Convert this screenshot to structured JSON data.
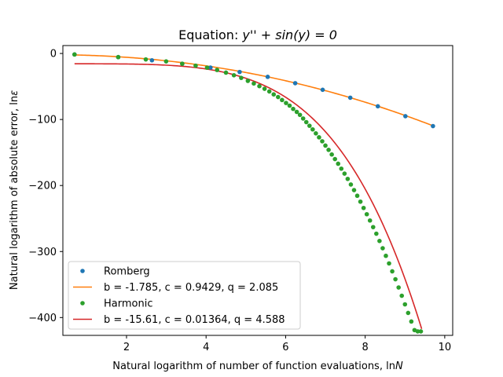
{
  "chart_data": {
    "type": "scatter",
    "title_prefix": "Equation: ",
    "title_math": "y'' + sin(y) = 0",
    "xlabel_prefix": "Natural logarithm of number of function evaluations, ln",
    "xlabel_var": "N",
    "ylabel_prefix": "Natural logarithm of absolute error, ln",
    "ylabel_var": "ε",
    "xlim": [
      0.4,
      10.2
    ],
    "ylim": [
      -427,
      12
    ],
    "x_ticks": [
      2,
      4,
      6,
      8,
      10
    ],
    "y_ticks": [
      0,
      -100,
      -200,
      -300,
      -400
    ],
    "y_tick_labels": [
      "0",
      "−100",
      "−200",
      "−300",
      "−400"
    ],
    "grid": false,
    "legend_position": "lower-left",
    "series": [
      {
        "name": "Romberg",
        "kind": "points",
        "color": "#1f77b4",
        "x": [
          0.693,
          1.792,
          2.639,
          3.401,
          4.111,
          4.844,
          5.549,
          6.241,
          6.931,
          7.625,
          8.318,
          9.011,
          9.704
        ],
        "y": [
          -1.5,
          -5.5,
          -10.3,
          -15.5,
          -21.4,
          -28.0,
          -35.4,
          -45.0,
          -55.0,
          -67.0,
          -80.0,
          -95.0,
          -110.0
        ]
      },
      {
        "name": "b = -1.785, c = 0.9429, q = 2.085",
        "kind": "line",
        "color": "#ff7f0e",
        "fit": {
          "b": -1.785,
          "c": 0.9429,
          "q": 2.085
        }
      },
      {
        "name": "Harmonic",
        "kind": "points",
        "color": "#2ca02c",
        "x": [
          0.693,
          1.792,
          2.485,
          2.996,
          3.401,
          3.738,
          4.025,
          4.277,
          4.5,
          4.7,
          4.883,
          5.05,
          5.2,
          5.34,
          5.47,
          5.59,
          5.7,
          5.81,
          5.91,
          6.01,
          6.1,
          6.19,
          6.28,
          6.36,
          6.44,
          6.52,
          6.6,
          6.68,
          6.76,
          6.84,
          6.92,
          7.0,
          7.08,
          7.16,
          7.24,
          7.32,
          7.4,
          7.48,
          7.56,
          7.64,
          7.72,
          7.8,
          7.88,
          7.96,
          8.04,
          8.12,
          8.2,
          8.28,
          8.36,
          8.44,
          8.52,
          8.6,
          8.68,
          8.76,
          8.84,
          8.92,
          9.0,
          9.08,
          9.16,
          9.24,
          9.32,
          9.4
        ],
        "y": [
          -1.5,
          -5.5,
          -9.0,
          -12.0,
          -15.5,
          -18.5,
          -21.5,
          -25.0,
          -29.0,
          -33.0,
          -37.0,
          -41.5,
          -45.5,
          -49.5,
          -53.5,
          -57.5,
          -62.0,
          -66.0,
          -70.5,
          -75.0,
          -79.0,
          -84.0,
          -88.5,
          -93.0,
          -98.5,
          -104.0,
          -109.5,
          -115.0,
          -121.0,
          -127.0,
          -133.0,
          -139.5,
          -146.0,
          -153.0,
          -160.0,
          -167.0,
          -174.5,
          -182.0,
          -190.0,
          -198.5,
          -207.0,
          -215.5,
          -224.5,
          -234.0,
          -243.5,
          -253.0,
          -263.0,
          -273.0,
          -284.0,
          -295.0,
          -306.5,
          -318.0,
          -330.0,
          -342.0,
          -354.5,
          -367.0,
          -380.0,
          -393.0,
          -406.0,
          -419.0,
          -421.0,
          -421.0
        ]
      },
      {
        "name": "b = -15.61, c = 0.01364, q = 4.588",
        "kind": "line",
        "color": "#d62728",
        "fit": {
          "b": -15.61,
          "c": 0.01364,
          "q": 4.588
        }
      }
    ]
  }
}
